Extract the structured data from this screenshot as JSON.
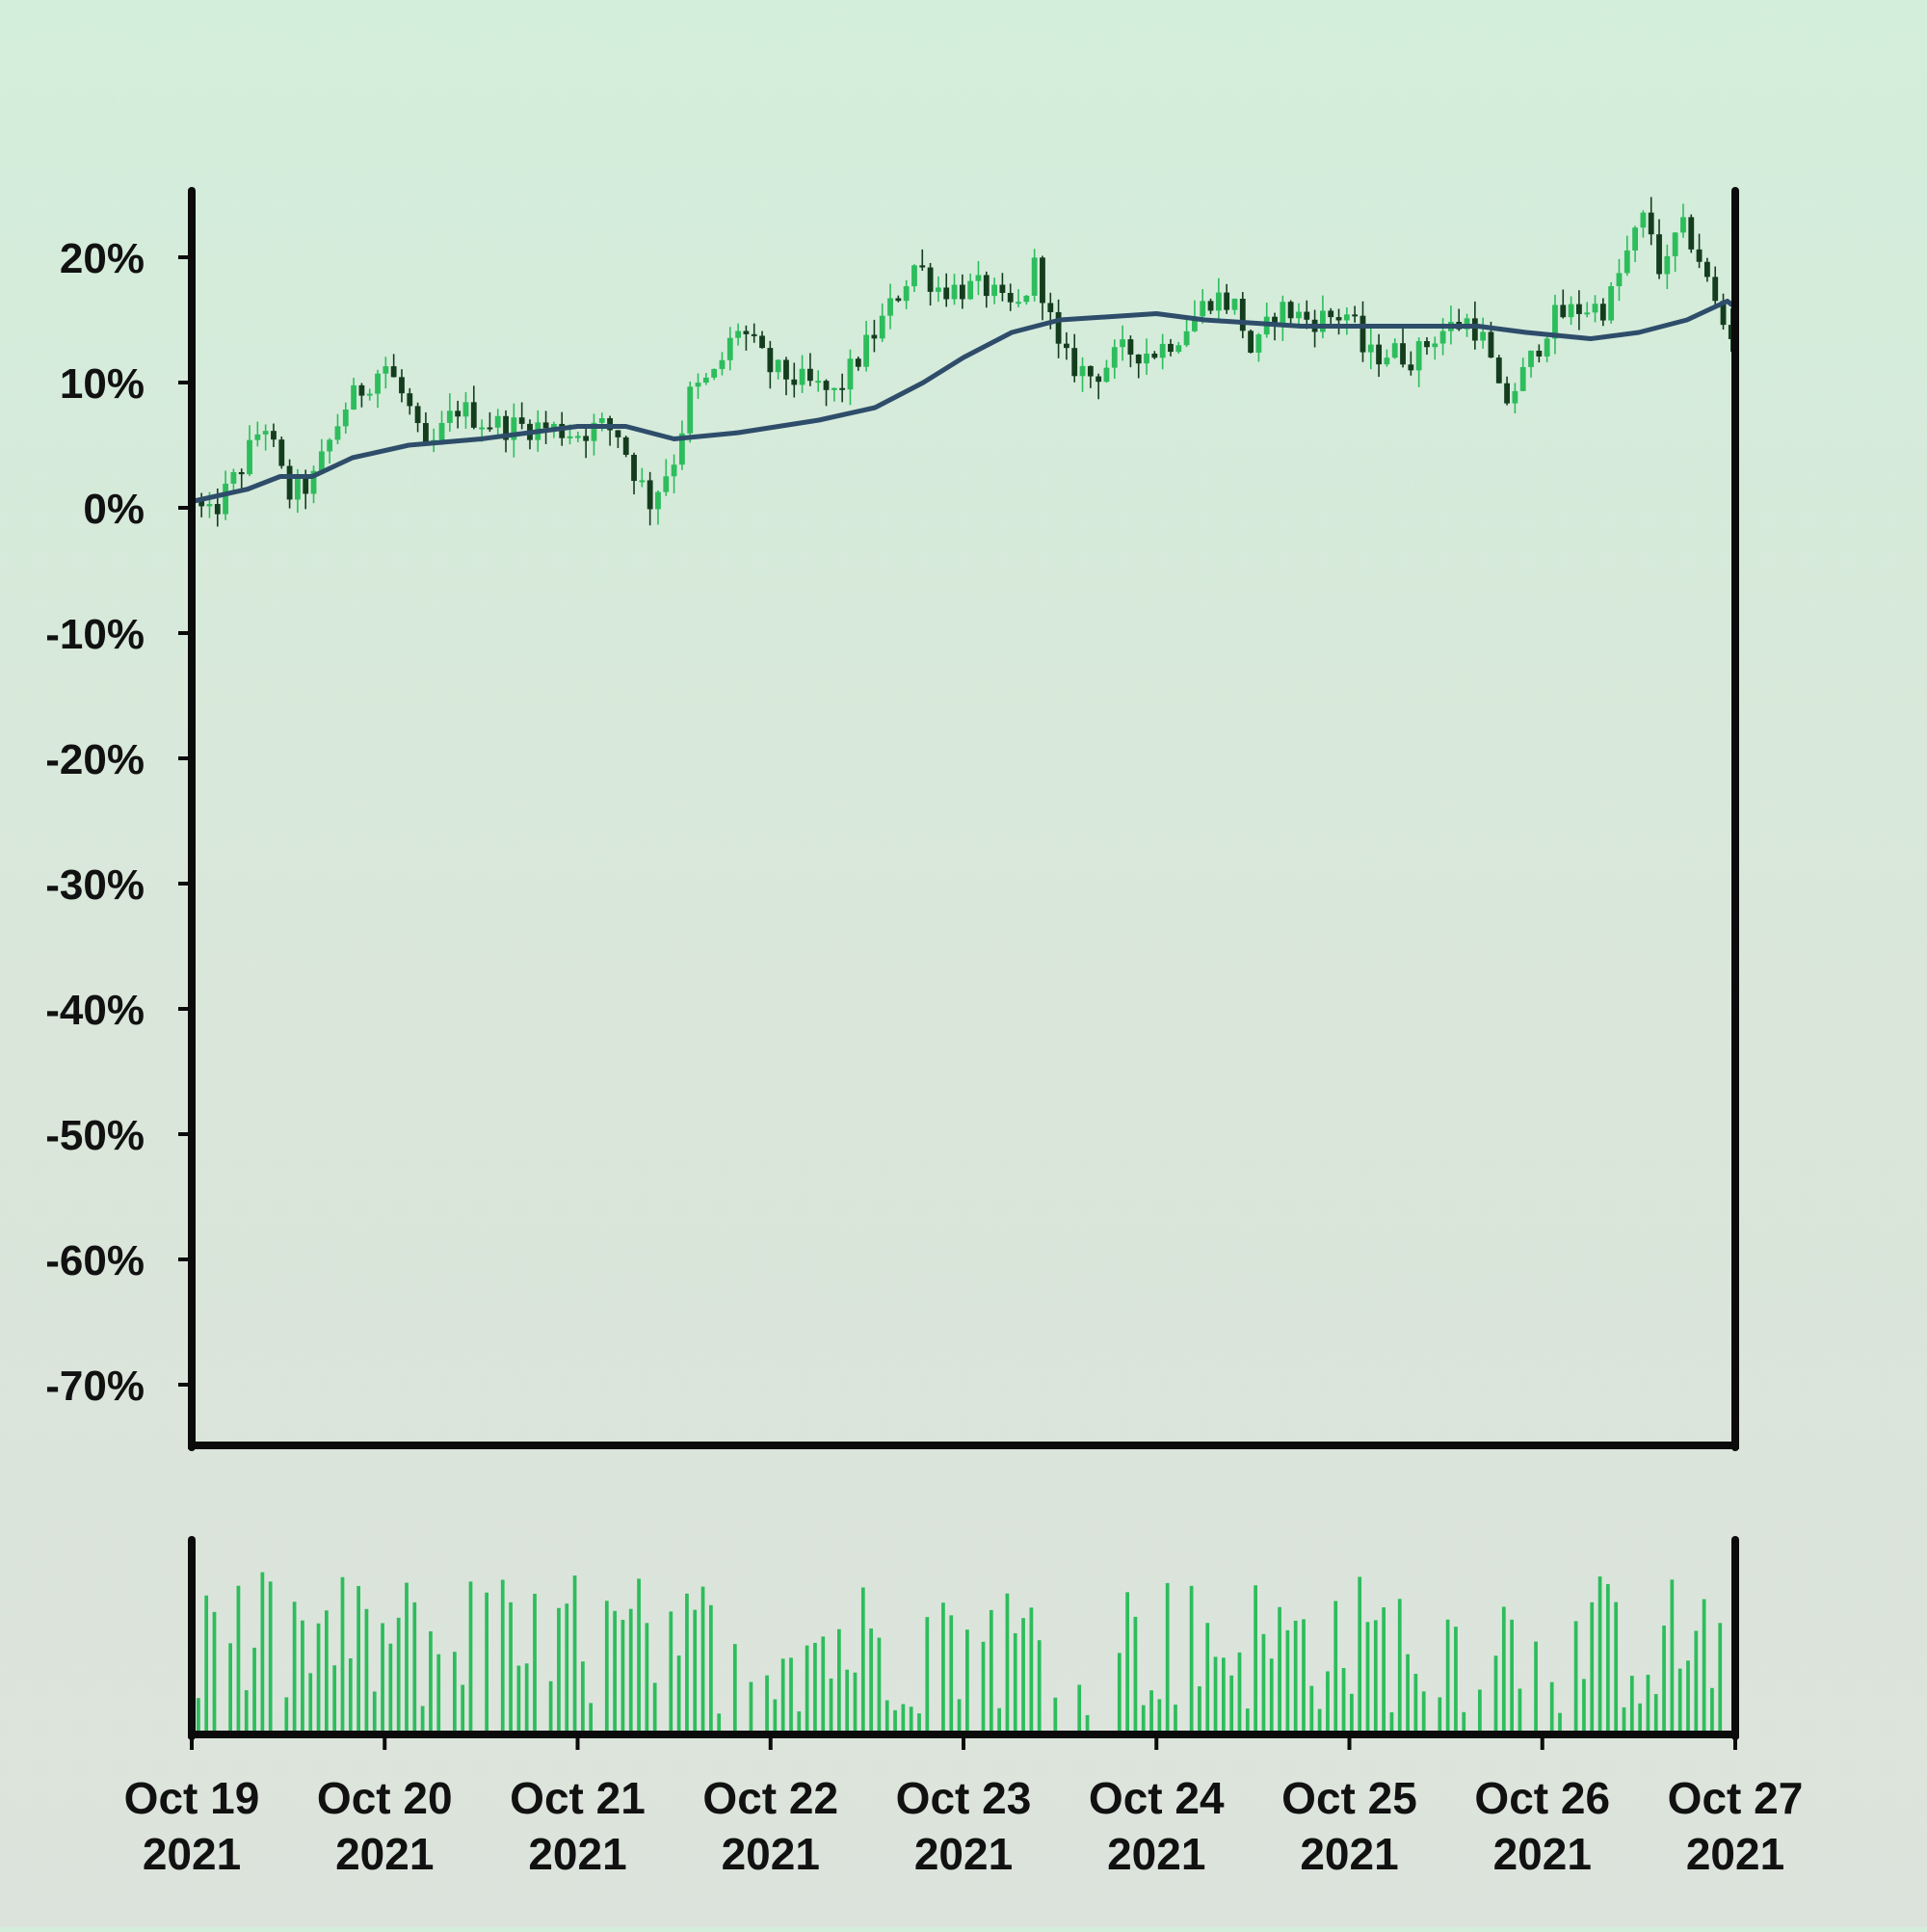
{
  "chart_data": {
    "type": "candlestick",
    "title": "",
    "xlabel": "",
    "ylabel": "",
    "x_range": [
      "2021-10-19",
      "2021-10-27"
    ],
    "ylim": [
      -75,
      25
    ],
    "ytick_values": [
      20,
      10,
      0,
      -10,
      -20,
      -30,
      -40,
      -50,
      -60,
      -70
    ],
    "ytick_labels": [
      "20%",
      "10%",
      "0%",
      "-10%",
      "-20%",
      "-30%",
      "-40%",
      "-50%",
      "-60%",
      "-70%"
    ],
    "xtick_dates": [
      "2021-10-19",
      "2021-10-20",
      "2021-10-21",
      "2021-10-22",
      "2021-10-23",
      "2021-10-24",
      "2021-10-25",
      "2021-10-26",
      "2021-10-27"
    ],
    "xtick_labels": [
      {
        "line1": "Oct 19",
        "line2": "2021"
      },
      {
        "line1": "Oct 20",
        "line2": "2021"
      },
      {
        "line1": "Oct 21",
        "line2": "2021"
      },
      {
        "line1": "Oct 22",
        "line2": "2021"
      },
      {
        "line1": "Oct 23",
        "line2": "2021"
      },
      {
        "line1": "Oct 24",
        "line2": "2021"
      },
      {
        "line1": "Oct 25",
        "line2": "2021"
      },
      {
        "line1": "Oct 26",
        "line2": "2021"
      },
      {
        "line1": "Oct 27",
        "line2": "2021"
      }
    ],
    "grid": false,
    "candles_per_day": 24,
    "series": [
      {
        "kind": "price_change_percent",
        "close_path": [
          [
            "2021-10-19 00:00",
            1
          ],
          [
            "2021-10-19 02:00",
            -1
          ],
          [
            "2021-10-19 06:00",
            3
          ],
          [
            "2021-10-19 09:00",
            7
          ],
          [
            "2021-10-19 12:00",
            1
          ],
          [
            "2021-10-19 15:00",
            2
          ],
          [
            "2021-10-19 19:00",
            8
          ],
          [
            "2021-10-20 00:00",
            11.5
          ],
          [
            "2021-10-20 03:00",
            8
          ],
          [
            "2021-10-20 05:00",
            4
          ],
          [
            "2021-10-20 07:00",
            6
          ],
          [
            "2021-10-20 09:00",
            8
          ],
          [
            "2021-10-20 12:00",
            7
          ],
          [
            "2021-10-20 15:00",
            6.5
          ],
          [
            "2021-10-20 19:00",
            6.5
          ],
          [
            "2021-10-21 00:00",
            6
          ],
          [
            "2021-10-21 03:00",
            6.5
          ],
          [
            "2021-10-21 05:00",
            6
          ],
          [
            "2021-10-21 07:00",
            3
          ],
          [
            "2021-10-21 09:00",
            0.5
          ],
          [
            "2021-10-21 12:00",
            4
          ],
          [
            "2021-10-21 14:00",
            9
          ],
          [
            "2021-10-21 17:00",
            10.5
          ],
          [
            "2021-10-21 20:00",
            14.5
          ],
          [
            "2021-10-22 00:00",
            11
          ],
          [
            "2021-10-22 04:00",
            10
          ],
          [
            "2021-10-22 08:00",
            9
          ],
          [
            "2021-10-22 11:00",
            12
          ],
          [
            "2021-10-22 14:00",
            15
          ],
          [
            "2021-10-22 18:00",
            19.5
          ],
          [
            "2021-10-22 21:00",
            17.5
          ],
          [
            "2021-10-23 00:00",
            17.5
          ],
          [
            "2021-10-23 03:00",
            17.5
          ],
          [
            "2021-10-23 05:00",
            16
          ],
          [
            "2021-10-23 07:00",
            16
          ],
          [
            "2021-10-23 09:00",
            19.5
          ],
          [
            "2021-10-23 12:00",
            12
          ],
          [
            "2021-10-23 16:00",
            10.5
          ],
          [
            "2021-10-23 20:00",
            12.5
          ],
          [
            "2021-10-24 00:00",
            12.5
          ],
          [
            "2021-10-24 03:00",
            14
          ],
          [
            "2021-10-24 07:00",
            17
          ],
          [
            "2021-10-24 10:00",
            16
          ],
          [
            "2021-10-24 12:00",
            12
          ],
          [
            "2021-10-24 15:00",
            16
          ],
          [
            "2021-10-24 19:00",
            15
          ],
          [
            "2021-10-25 00:00",
            15.5
          ],
          [
            "2021-10-25 02:00",
            12
          ],
          [
            "2021-10-25 05:00",
            12.5
          ],
          [
            "2021-10-25 08:00",
            12
          ],
          [
            "2021-10-25 11:00",
            14
          ],
          [
            "2021-10-25 15:00",
            15
          ],
          [
            "2021-10-25 17:00",
            13
          ],
          [
            "2021-10-25 19:00",
            8
          ],
          [
            "2021-10-25 22:00",
            11
          ],
          [
            "2021-10-26 01:00",
            15
          ],
          [
            "2021-10-26 05:00",
            16
          ],
          [
            "2021-10-26 08:00",
            16
          ],
          [
            "2021-10-26 11:00",
            21
          ],
          [
            "2021-10-26 13:00",
            23.5
          ],
          [
            "2021-10-26 15:00",
            18
          ],
          [
            "2021-10-26 17:00",
            22.5
          ],
          [
            "2021-10-26 19:00",
            21
          ],
          [
            "2021-10-26 21:00",
            17
          ],
          [
            "2021-10-26 23:00",
            14
          ]
        ]
      },
      {
        "kind": "moving_average",
        "color": "#2e4d6a",
        "points": [
          [
            "2021-10-19 00:00",
            0.5
          ],
          [
            "2021-10-19 07:00",
            1.5
          ],
          [
            "2021-10-19 11:00",
            2.5
          ],
          [
            "2021-10-19 15:00",
            2.5
          ],
          [
            "2021-10-19 20:00",
            4
          ],
          [
            "2021-10-20 03:00",
            5
          ],
          [
            "2021-10-20 12:00",
            5.5
          ],
          [
            "2021-10-21 00:00",
            6.5
          ],
          [
            "2021-10-21 06:00",
            6.5
          ],
          [
            "2021-10-21 12:00",
            5.5
          ],
          [
            "2021-10-21 20:00",
            6
          ],
          [
            "2021-10-22 06:00",
            7
          ],
          [
            "2021-10-22 13:00",
            8
          ],
          [
            "2021-10-22 19:00",
            10
          ],
          [
            "2021-10-23 00:00",
            12
          ],
          [
            "2021-10-23 06:00",
            14
          ],
          [
            "2021-10-23 12:00",
            15
          ],
          [
            "2021-10-24 00:00",
            15.5
          ],
          [
            "2021-10-24 06:00",
            15
          ],
          [
            "2021-10-24 18:00",
            14.5
          ],
          [
            "2021-10-25 06:00",
            14.5
          ],
          [
            "2021-10-25 16:00",
            14.5
          ],
          [
            "2021-10-25 22:00",
            14
          ],
          [
            "2021-10-26 06:00",
            13.5
          ],
          [
            "2021-10-26 12:00",
            14
          ],
          [
            "2021-10-26 18:00",
            15
          ],
          [
            "2021-10-26 23:00",
            16.5
          ],
          [
            "2021-10-27 00:00",
            16
          ]
        ]
      },
      {
        "kind": "volume",
        "panel": "lower"
      }
    ],
    "colors": {
      "up": "#2dbd5c",
      "down": "#143d1e",
      "volume": "#2dbd5c",
      "axis": "#0b0b0b"
    }
  }
}
